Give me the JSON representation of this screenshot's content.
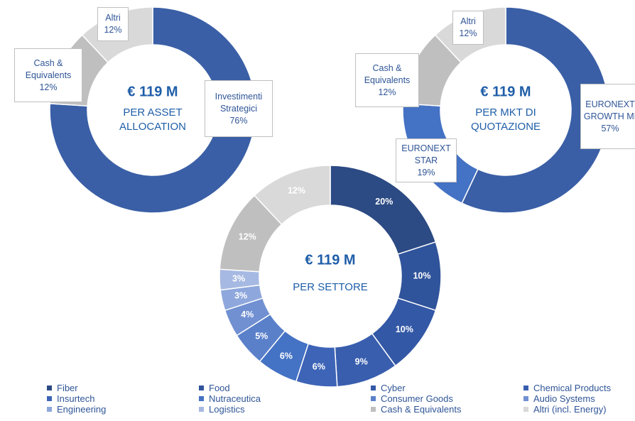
{
  "chart_data": [
    {
      "type": "donut",
      "center_title": "€ 119 M",
      "center_label": [
        "PER ASSET",
        "ALLOCATION"
      ],
      "categories": [
        "Investimenti Strategici",
        "Cash & Equivalents",
        "Altri"
      ],
      "values": [
        76,
        12,
        12
      ],
      "value_labels": [
        "76%",
        "12%",
        "12%"
      ],
      "colors": [
        "#3a5fa6",
        "#bfbfbf",
        "#d9d9d9"
      ]
    },
    {
      "type": "donut",
      "center_title": "€ 119 M",
      "center_label": [
        "PER MKT DI",
        "QUOTAZIONE"
      ],
      "categories": [
        "EURONEXT GROWTH MI",
        "EURONEXT STAR",
        "Cash & Equivalents",
        "Altri"
      ],
      "values": [
        57,
        19,
        12,
        12
      ],
      "value_labels": [
        "57%",
        "19%",
        "12%",
        "12%"
      ],
      "colors": [
        "#3a5fa6",
        "#4472c4",
        "#bfbfbf",
        "#d9d9d9"
      ]
    },
    {
      "type": "donut",
      "center_title": "€ 119 M",
      "center_label": [
        "PER SETTORE"
      ],
      "categories": [
        "Fiber",
        "Food",
        "Cyber",
        "Chemical Products",
        "Insurtech",
        "Nutraceutica",
        "Consumer Goods",
        "Audio Systems",
        "Engineering",
        "Logistics",
        "Cash & Equivalents",
        "Altri (incl. Energy)"
      ],
      "values": [
        20,
        10,
        10,
        9,
        6,
        6,
        5,
        4,
        3,
        3,
        12,
        12
      ],
      "value_labels": [
        "20%",
        "10%",
        "10%",
        "9%",
        "6%",
        "6%",
        "5%",
        "4%",
        "3%",
        "3%",
        "12%",
        "12%"
      ],
      "colors": [
        "#2c4a83",
        "#30549b",
        "#3358a6",
        "#395eae",
        "#3d64b6",
        "#4472c4",
        "#5a80ca",
        "#7090d2",
        "#8ea7dc",
        "#a6b9e2",
        "#bfbfbf",
        "#d9d9d9"
      ],
      "legend": true
    }
  ]
}
